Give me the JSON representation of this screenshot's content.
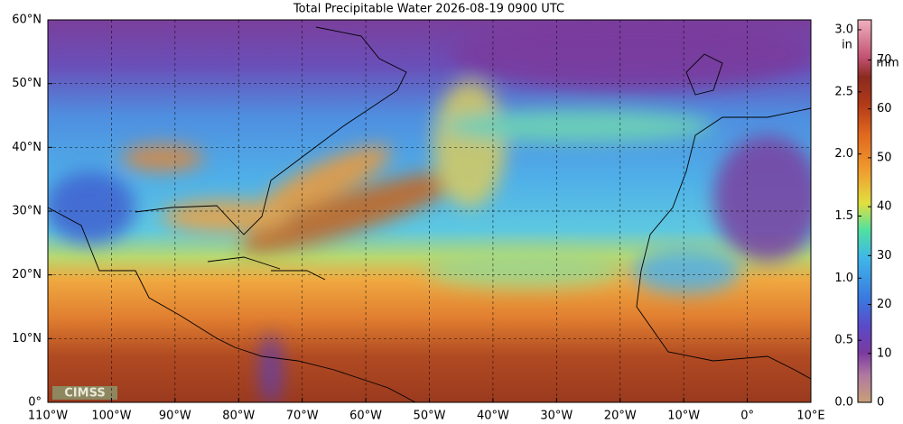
{
  "title": "Total Precipitable Water  2026-08-19 0900 UTC",
  "map": {
    "lonlim": [
      -110,
      10
    ],
    "latlim": [
      0,
      60
    ],
    "lon_ticks": [
      {
        "value": -110,
        "label": "110°W"
      },
      {
        "value": -100,
        "label": "100°W"
      },
      {
        "value": -90,
        "label": "90°W"
      },
      {
        "value": -80,
        "label": "80°W"
      },
      {
        "value": -70,
        "label": "70°W"
      },
      {
        "value": -60,
        "label": "60°W"
      },
      {
        "value": -50,
        "label": "50°W"
      },
      {
        "value": -40,
        "label": "40°W"
      },
      {
        "value": -30,
        "label": "30°W"
      },
      {
        "value": -20,
        "label": "20°W"
      },
      {
        "value": -10,
        "label": "10°W"
      },
      {
        "value": 0,
        "label": "0°"
      },
      {
        "value": 10,
        "label": "10°E"
      }
    ],
    "lat_ticks": [
      {
        "value": 0,
        "label": "0°"
      },
      {
        "value": 10,
        "label": "10°N"
      },
      {
        "value": 20,
        "label": "20°N"
      },
      {
        "value": 30,
        "label": "30°N"
      },
      {
        "value": 40,
        "label": "40°N"
      },
      {
        "value": 50,
        "label": "50°N"
      },
      {
        "value": 60,
        "label": "60°N"
      }
    ],
    "logo": "CIMSS"
  },
  "colorbar": {
    "in_unit": "in",
    "in_lim": [
      0,
      3.08
    ],
    "in_ticks": [
      {
        "value": 0,
        "label": "0.0"
      },
      {
        "value": 0.5,
        "label": "0.5"
      },
      {
        "value": 1,
        "label": "1.0"
      },
      {
        "value": 1.5,
        "label": "1.5"
      },
      {
        "value": 2,
        "label": "2.0"
      },
      {
        "value": 2.5,
        "label": "2.5"
      },
      {
        "value": 3,
        "label": "3.0"
      }
    ],
    "mm_unit": "mm",
    "mm_lim": [
      0,
      78.2
    ],
    "mm_ticks": [
      0,
      10,
      20,
      30,
      40,
      50,
      60,
      70
    ]
  }
}
